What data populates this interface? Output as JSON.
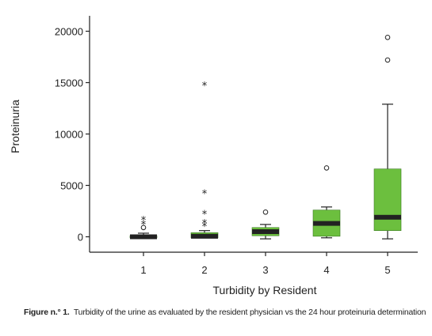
{
  "chart_data": {
    "type": "box",
    "xlabel": "Turbidity by Resident",
    "ylabel": "Proteinuria",
    "ylim": [
      -1500,
      21500
    ],
    "yticks": [
      0,
      5000,
      10000,
      15000,
      20000
    ],
    "categories": [
      "1",
      "2",
      "3",
      "4",
      "5"
    ],
    "box_color": "#6cbf3e",
    "median_color": "#222222",
    "grid": false,
    "boxes": [
      {
        "category": "1",
        "whisker_low": -100,
        "q1": -100,
        "median": 0,
        "q3": 100,
        "whisker_high": 350,
        "outliers": [
          {
            "value": 700,
            "marker": "star"
          },
          {
            "value": 900,
            "marker": "circle"
          },
          {
            "value": 1200,
            "marker": "star"
          },
          {
            "value": 1600,
            "marker": "star"
          }
        ]
      },
      {
        "category": "2",
        "whisker_low": -100,
        "q1": -100,
        "median": 50,
        "q3": 400,
        "whisker_high": 600,
        "outliers": [
          {
            "value": 1000,
            "marker": "star"
          },
          {
            "value": 1300,
            "marker": "star"
          },
          {
            "value": 2200,
            "marker": "star"
          },
          {
            "value": 4200,
            "marker": "star"
          },
          {
            "value": 14700,
            "marker": "star"
          }
        ]
      },
      {
        "category": "3",
        "whisker_low": -200,
        "q1": 100,
        "median": 500,
        "q3": 900,
        "whisker_high": 1200,
        "outliers": [
          {
            "value": 2400,
            "marker": "circle"
          }
        ]
      },
      {
        "category": "4",
        "whisker_low": -100,
        "q1": 50,
        "median": 1300,
        "q3": 2600,
        "whisker_high": 2900,
        "outliers": [
          {
            "value": 6700,
            "marker": "circle"
          }
        ]
      },
      {
        "category": "5",
        "whisker_low": -200,
        "q1": 600,
        "median": 1900,
        "q3": 6600,
        "whisker_high": 12900,
        "outliers": [
          {
            "value": 17200,
            "marker": "circle"
          },
          {
            "value": 19400,
            "marker": "circle"
          }
        ]
      }
    ]
  },
  "caption": {
    "label": "Figure n.° 1.",
    "text": "Turbidity of the urine as evaluated by the resident physician vs the 24 hour proteinuria determination"
  }
}
